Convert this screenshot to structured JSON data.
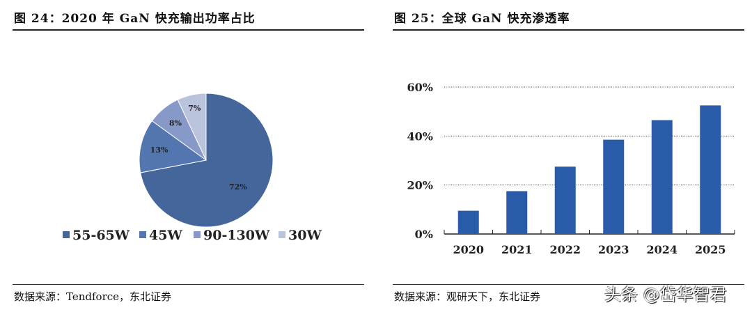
{
  "left": {
    "title": "图 24：2020 年 GaN 快充输出功率占比",
    "source": "数据来源：Tendforce，东北证券"
  },
  "right": {
    "title": "图 25：全球 GaN 快充渗透率",
    "source": "数据来源：观研天下，东北证券"
  },
  "watermark": "头条 @岱华智君",
  "chart_data": [
    {
      "type": "pie",
      "labels": [
        "55-65W",
        "45W",
        "90-130W",
        "30W"
      ],
      "values": [
        72,
        13,
        8,
        7
      ],
      "data_labels": [
        "72%",
        "13%",
        "8%",
        "7%"
      ],
      "colors": [
        "#44669a",
        "#5476b0",
        "#8799c6",
        "#b9c3dc"
      ],
      "legend": "bottom"
    },
    {
      "type": "bar",
      "categories": [
        "2020",
        "2021",
        "2022",
        "2023",
        "2024",
        "2025"
      ],
      "values": [
        9.5,
        17.5,
        27.5,
        38.5,
        46.5,
        52.5
      ],
      "ylim": [
        0,
        60
      ],
      "yticks": [
        "0%",
        "20%",
        "40%",
        "60%"
      ],
      "grid": true,
      "color": "#2a5ba8"
    }
  ]
}
